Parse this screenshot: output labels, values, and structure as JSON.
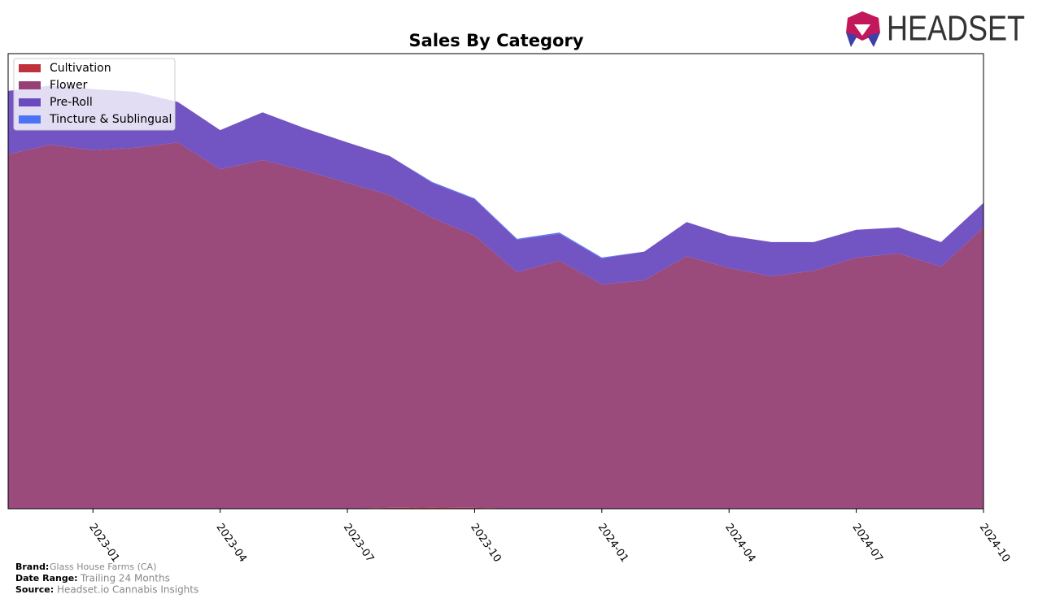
{
  "chart_data": {
    "type": "stacked-area",
    "title": "Sales By Category",
    "x": [
      "2022-11",
      "2022-12",
      "2023-01",
      "2023-02",
      "2023-03",
      "2023-04",
      "2023-05",
      "2023-06",
      "2023-07",
      "2023-08",
      "2023-09",
      "2023-10",
      "2023-11",
      "2023-12",
      "2024-01",
      "2024-02",
      "2024-03",
      "2024-04",
      "2024-05",
      "2024-06",
      "2024-07",
      "2024-08",
      "2024-09",
      "2024-10"
    ],
    "xlim": [
      "2022-11",
      "2024-10"
    ],
    "xticks": [
      "2023-01",
      "2023-04",
      "2023-07",
      "2023-10",
      "2024-01",
      "2024-04",
      "2024-07",
      "2024-10"
    ],
    "ylim": [
      0,
      100
    ],
    "legend": "upper left",
    "series": [
      {
        "name": "Cultivation",
        "color": "#c0313b",
        "values": [
          0,
          0,
          0,
          0,
          0,
          0,
          0,
          0,
          0,
          0.2,
          0.3,
          0.2,
          0,
          0,
          0,
          0,
          0,
          0,
          0,
          0,
          0,
          0,
          0,
          0
        ]
      },
      {
        "name": "Flower",
        "color": "#964075",
        "values": [
          77.9,
          80.0,
          78.8,
          79.3,
          80.5,
          74.6,
          76.6,
          74.3,
          71.6,
          68.7,
          63.6,
          59.8,
          52.0,
          54.5,
          49.3,
          50.2,
          55.5,
          52.9,
          51.1,
          52.3,
          55.2,
          56.1,
          53.2,
          61.8
        ]
      },
      {
        "name": "Pre-Roll",
        "color": "#6a4bbf",
        "values": [
          13.9,
          13.0,
          13.4,
          12.3,
          8.9,
          8.6,
          10.5,
          9.3,
          8.9,
          8.6,
          7.7,
          8.0,
          7.1,
          5.9,
          5.7,
          6.3,
          7.5,
          7.1,
          7.5,
          6.3,
          6.1,
          5.7,
          5.4,
          5.4
        ]
      },
      {
        "name": "Tincture & Sublingual",
        "color": "#4d73f5",
        "values": [
          0,
          0,
          0,
          0,
          0,
          0,
          0,
          0,
          0,
          0,
          0.2,
          0.2,
          0.2,
          0.3,
          0.2,
          0,
          0,
          0,
          0,
          0,
          0,
          0,
          0,
          0
        ]
      }
    ]
  },
  "logo": "HEADSET",
  "footer": {
    "brand_label": "Brand:",
    "brand": "Glass House Farms (CA)",
    "date_label": "Date Range:",
    "date": "Trailing 24 Months",
    "source_label": "Source:",
    "source": "Headset.io Cannabis Insights"
  }
}
